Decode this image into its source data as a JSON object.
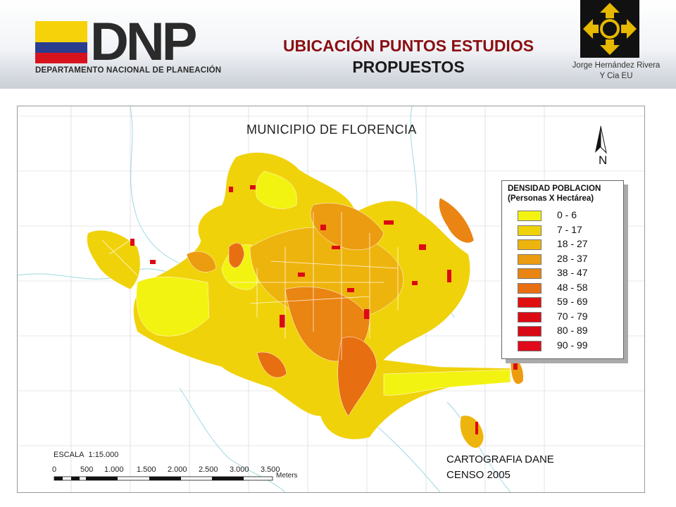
{
  "header": {
    "brand": "DNP",
    "brand_subtitle": "DEPARTAMENTO NACIONAL DE PLANEACIÓN",
    "title_line1": "UBICACIÓN PUNTOS ESTUDIOS",
    "title_line2": "PROPUESTOS",
    "credit_line1": "Jorge Hernández Rivera",
    "credit_line2": "Y Cia EU"
  },
  "map": {
    "title": "MUNICIPIO DE FLORENCIA",
    "north": "N",
    "source_line1": "CARTOGRAFIA DANE",
    "source_line2": "CENSO 2005",
    "scale_label": "ESCALA",
    "scale_ratio": "1:15.000",
    "scale_ticks": [
      "0",
      "500",
      "1.000",
      "1.500",
      "2.000",
      "2.500",
      "3.000",
      "3.500"
    ],
    "scale_unit": "Meters"
  },
  "legend": {
    "title_line1": "DENSIDAD POBLACION",
    "title_line2": "(Personas X Hectárea)",
    "classes": [
      {
        "label": "0 - 6",
        "color": "#f3f312"
      },
      {
        "label": "7 - 17",
        "color": "#f0d20a"
      },
      {
        "label": "18 - 27",
        "color": "#eeb40e"
      },
      {
        "label": "28 - 37",
        "color": "#ec9c10"
      },
      {
        "label": "38 - 47",
        "color": "#ea8412"
      },
      {
        "label": "48 - 58",
        "color": "#e86e12"
      },
      {
        "label": "59 - 69",
        "color": "#e01010"
      },
      {
        "label": "70 - 79",
        "color": "#dc0a14"
      },
      {
        "label": "80 - 89",
        "color": "#d80a16"
      },
      {
        "label": "90 - 99",
        "color": "#e00a1a"
      }
    ]
  }
}
